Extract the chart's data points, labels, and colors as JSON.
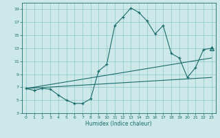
{
  "xlabel": "Humidex (Indice chaleur)",
  "bg_color": "#cce8e8",
  "grid_color": "#99cccc",
  "line_color": "#1a6b6b",
  "xlim": [
    -0.5,
    23.5
  ],
  "ylim": [
    3,
    20
  ],
  "xticks": [
    0,
    1,
    2,
    3,
    4,
    5,
    6,
    7,
    8,
    9,
    10,
    11,
    12,
    13,
    14,
    15,
    16,
    17,
    18,
    19,
    20,
    21,
    22,
    23
  ],
  "yticks": [
    3,
    5,
    7,
    9,
    11,
    13,
    15,
    17,
    19
  ],
  "curve1_x": [
    0,
    1,
    2,
    3,
    4,
    5,
    6,
    7,
    8,
    9,
    10,
    11,
    12,
    13,
    14,
    15,
    16,
    17,
    18,
    19,
    20,
    21,
    22,
    23
  ],
  "curve1_y": [
    6.8,
    6.5,
    6.8,
    6.7,
    5.8,
    5.0,
    4.5,
    4.5,
    5.2,
    9.5,
    10.5,
    16.5,
    17.8,
    19.2,
    18.5,
    17.2,
    15.2,
    16.5,
    12.2,
    11.5,
    8.5,
    10.0,
    12.8,
    13.0
  ],
  "curve2_x": [
    0,
    23
  ],
  "curve2_y": [
    6.8,
    11.5
  ],
  "curve3_x": [
    0,
    23
  ],
  "curve3_y": [
    6.8,
    8.5
  ],
  "tri_x": 23,
  "tri_y": 13.0
}
